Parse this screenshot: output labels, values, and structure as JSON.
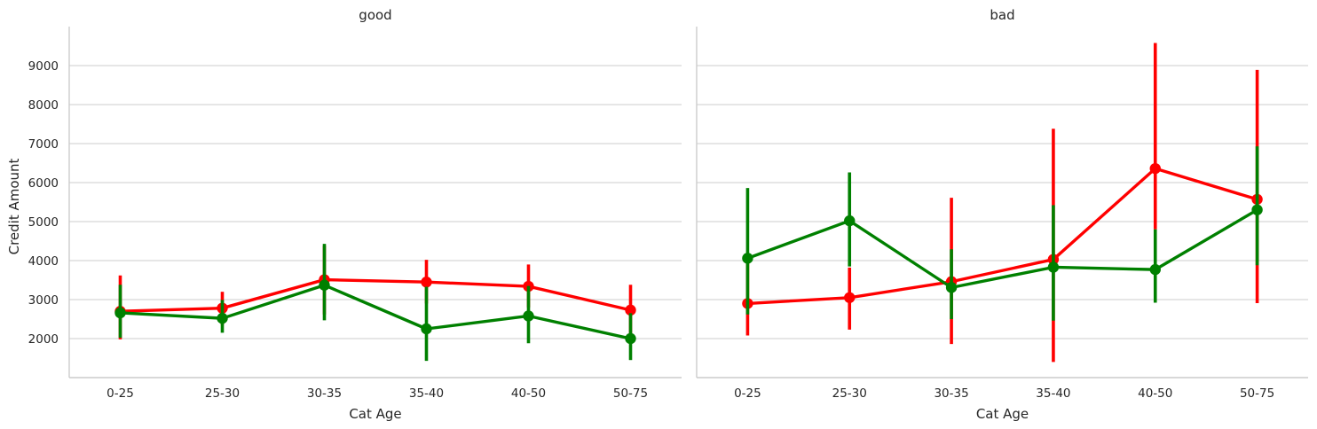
{
  "chart_data": [
    {
      "type": "line",
      "title": "good",
      "xlabel": "Cat Age",
      "ylabel": "Credit Amount",
      "categories": [
        "0-25",
        "25-30",
        "30-35",
        "35-40",
        "40-50",
        "50-75"
      ],
      "ylim": [
        1000,
        10000
      ],
      "yticks": [
        2000,
        3000,
        4000,
        5000,
        6000,
        7000,
        8000,
        9000
      ],
      "grid": "horizontal",
      "series": [
        {
          "color": "#ff0000",
          "values": [
            2700,
            2780,
            3510,
            3450,
            3340,
            2730
          ],
          "ci": [
            [
              1980,
              3620
            ],
            [
              2350,
              3200
            ],
            [
              2620,
              4380
            ],
            [
              2900,
              4020
            ],
            [
              2800,
              3900
            ],
            [
              2070,
              3380
            ]
          ]
        },
        {
          "color": "#008000",
          "values": [
            2660,
            2520,
            3370,
            2250,
            2580,
            2000
          ],
          "ci": [
            [
              2020,
              3380
            ],
            [
              2150,
              2990
            ],
            [
              2470,
              4430
            ],
            [
              1430,
              3330
            ],
            [
              1880,
              3350
            ],
            [
              1450,
              2650
            ]
          ]
        }
      ]
    },
    {
      "type": "line",
      "title": "bad",
      "xlabel": "Cat Age",
      "ylabel": "",
      "categories": [
        "0-25",
        "25-30",
        "30-35",
        "35-40",
        "40-50",
        "50-75"
      ],
      "ylim": [
        1000,
        10000
      ],
      "yticks": [
        2000,
        3000,
        4000,
        5000,
        6000,
        7000,
        8000,
        9000
      ],
      "grid": "horizontal",
      "series": [
        {
          "color": "#ff0000",
          "values": [
            2900,
            3050,
            3460,
            4030,
            6360,
            5570
          ],
          "ci": [
            [
              2080,
              3930
            ],
            [
              2230,
              3820
            ],
            [
              1860,
              5610
            ],
            [
              1400,
              7380
            ],
            [
              4800,
              9580
            ],
            [
              2910,
              8890
            ]
          ]
        },
        {
          "color": "#008000",
          "values": [
            4060,
            5020,
            3310,
            3830,
            3770,
            5300
          ],
          "ci": [
            [
              2620,
              5860
            ],
            [
              3850,
              6260
            ],
            [
              2500,
              4290
            ],
            [
              2460,
              5420
            ],
            [
              2920,
              4800
            ],
            [
              3880,
              6930
            ]
          ]
        }
      ]
    }
  ]
}
